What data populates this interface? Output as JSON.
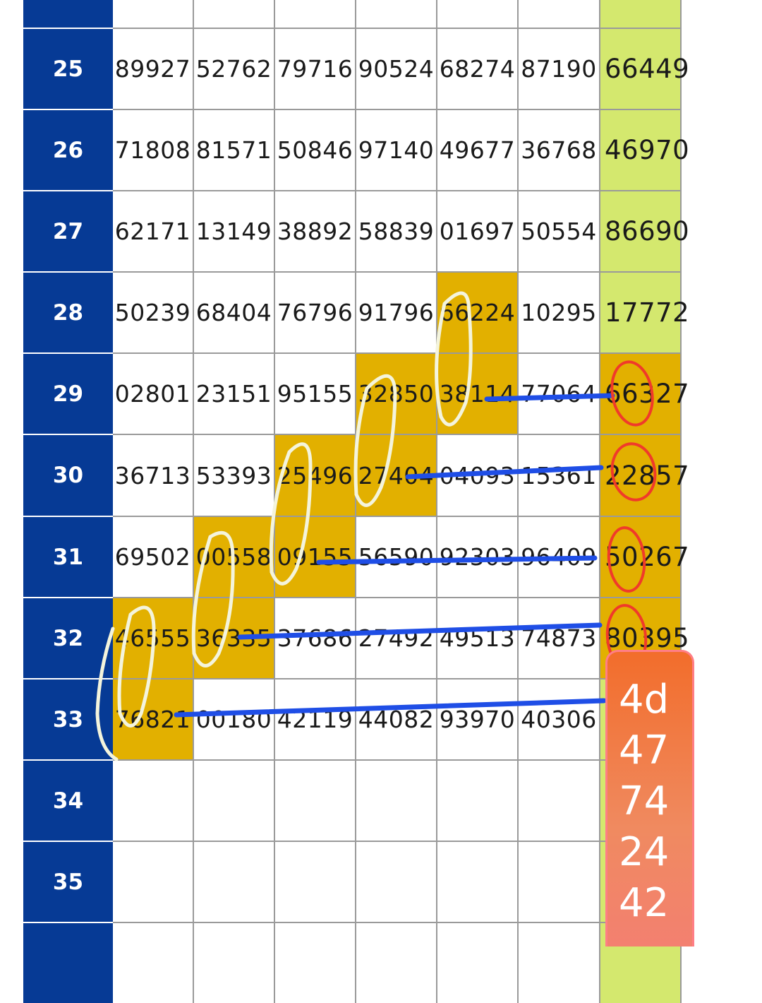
{
  "table": {
    "rows": [
      {
        "label": "",
        "values": [
          "",
          "",
          "",
          "",
          "",
          "",
          ""
        ]
      },
      {
        "label": "25",
        "values": [
          "89927",
          "52762",
          "79716",
          "90524",
          "68274",
          "87190",
          "66449"
        ]
      },
      {
        "label": "26",
        "values": [
          "71808",
          "81571",
          "50846",
          "97140",
          "49677",
          "36768",
          "46970"
        ]
      },
      {
        "label": "27",
        "values": [
          "62171",
          "13149",
          "38892",
          "58839",
          "01697",
          "50554",
          "86690"
        ]
      },
      {
        "label": "28",
        "values": [
          "50239",
          "68404",
          "76796",
          "91796",
          "66224",
          "10295",
          "17772"
        ]
      },
      {
        "label": "29",
        "values": [
          "02801",
          "23151",
          "95155",
          "32850",
          "38114",
          "77064",
          "66327"
        ]
      },
      {
        "label": "30",
        "values": [
          "36713",
          "53393",
          "25496",
          "27404",
          "04093",
          "15361",
          "22857"
        ]
      },
      {
        "label": "31",
        "values": [
          "69502",
          "00558",
          "09155",
          "56590",
          "92303",
          "96409",
          "50267"
        ]
      },
      {
        "label": "32",
        "values": [
          "46555",
          "36335",
          "37686",
          "27492",
          "49513",
          "74873",
          "80395"
        ]
      },
      {
        "label": "33",
        "values": [
          "76821",
          "00180",
          "42119",
          "44082",
          "93970",
          "40306",
          ""
        ]
      },
      {
        "label": "34",
        "values": [
          "",
          "",
          "",
          "",
          "",
          "",
          ""
        ]
      },
      {
        "label": "35",
        "values": [
          "",
          "",
          "",
          "",
          "",
          "",
          ""
        ]
      },
      {
        "label": "",
        "values": [
          "",
          "",
          "",
          "",
          "",
          "",
          ""
        ]
      }
    ]
  },
  "highlighted_cells": [
    {
      "row": "28",
      "column": 5
    },
    {
      "row": "29",
      "column": 4
    },
    {
      "row": "29",
      "column": 5
    },
    {
      "row": "30",
      "column": 3
    },
    {
      "row": "30",
      "column": 4
    },
    {
      "row": "31",
      "column": 2
    },
    {
      "row": "31",
      "column": 3
    },
    {
      "row": "32",
      "column": 1
    },
    {
      "row": "32",
      "column": 2
    },
    {
      "row": "33",
      "column": 1
    }
  ],
  "circled_results": [
    "29",
    "30",
    "31",
    "32"
  ],
  "prediction_note": {
    "lines": [
      "4d",
      "47",
      "74",
      "24",
      "42"
    ]
  },
  "colors": {
    "row_header_bg": "#063a95",
    "row_header_text": "#ffffff",
    "result_column_bg": "#d4e86e",
    "highlight_bg": "#e2b000",
    "grid_line": "#9a9a9a",
    "marker_line": "#1f4ee6",
    "circle_mark": "#f03a2a",
    "loop_mark": "#f4f4dc",
    "note_bg": "#f26d2b"
  }
}
